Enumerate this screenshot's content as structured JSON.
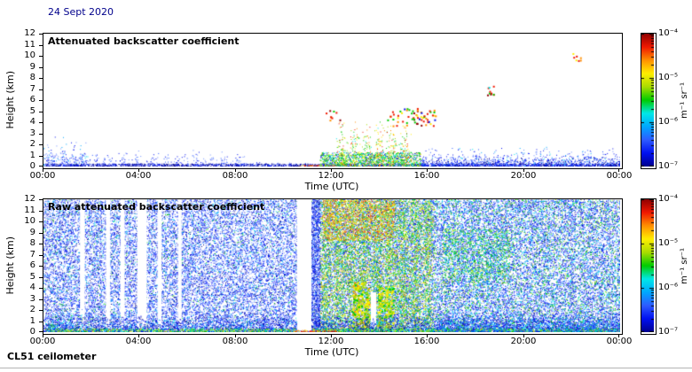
{
  "figure": {
    "date_label": "24 Sept 2020",
    "date_color": "#00008B",
    "footer_label": "CL51 ceilometer",
    "background": "#ffffff",
    "text_color": "#000000"
  },
  "axes": {
    "x_label": "Time (UTC)",
    "y_label": "Height (km)",
    "x_ticks": [
      "00:00",
      "04:00",
      "08:00",
      "12:00",
      "16:00",
      "20:00",
      "00:00"
    ],
    "y_ticks": [
      "12",
      "11",
      "10",
      "9",
      "8",
      "7",
      "6",
      "5",
      "4",
      "3",
      "2",
      "1",
      "0"
    ],
    "x_range_hours": [
      0,
      24
    ],
    "y_range_km": [
      0,
      12
    ]
  },
  "colorbar": {
    "label": "m⁻¹ sr⁻¹",
    "tick_labels": [
      "10⁻⁴",
      "10⁻⁵",
      "10⁻⁶",
      "10⁻⁷"
    ],
    "scale": "log10",
    "value_range": [
      "1e-7",
      "1e-4"
    ],
    "gradient_top_to_bottom": [
      "#8f0000",
      "#f01800",
      "#ff9000",
      "#ffee00",
      "#aadd00",
      "#00cc00",
      "#00e8e8",
      "#00a8ff",
      "#2e5bff",
      "#0010f0",
      "#00008f"
    ]
  },
  "palette": {
    "darkblue": "#00008f",
    "blue": "#0010f0",
    "medblue": "#2e5bff",
    "ltblue": "#6f8fff",
    "skyblue": "#00a8ff",
    "cyan": "#00e8e8",
    "green": "#00cc00",
    "ygreen": "#aadd00",
    "yellow": "#ffee00",
    "orange": "#ff9000",
    "red": "#f01800",
    "darkred": "#8f0000"
  },
  "chart_data": [
    {
      "type": "heatmap",
      "title": "Attenuated backscatter coefficient",
      "xlabel": "Time (UTC)",
      "ylabel": "Height (km)",
      "x_range": [
        0,
        24
      ],
      "y_range": [
        0,
        12
      ],
      "value_label": "m⁻¹ sr⁻¹",
      "value_scale": "log10",
      "value_range": [
        "1e-7",
        "1e-4"
      ],
      "colormap": "jet",
      "description": "Mostly clear (white). Blue aerosol boundary layer below ~2 km all day; speckle up to ~3 km at 00:00–02:00; sparse striped band until 08:00; precipitation/cloud plumes (green-yellow-red) 12:00–15:30 up to ~4.5 km; cloud-base dots near 4–5 km at 14:00–16:00; isolated clouds near 7 km at ~18:30 and ~10 km at ~22:00.",
      "regions": [
        {
          "x": [
            0,
            1.9
          ],
          "y": [
            0,
            3.1
          ],
          "density": 0.22,
          "dot": 1,
          "falloff": 2.0,
          "colors": [
            [
              "ltblue",
              4
            ],
            [
              "blue",
              3
            ],
            [
              "skyblue",
              2
            ],
            [
              "cyan",
              0.5
            ]
          ]
        },
        {
          "x": [
            0,
            8.4
          ],
          "y": [
            0,
            1.7
          ],
          "density": 0.3,
          "dot": 1,
          "falloff": 1.8,
          "columns": 14,
          "colfloor": 0.2,
          "colors": [
            [
              "ltblue",
              4
            ],
            [
              "blue",
              3
            ],
            [
              "medblue",
              2
            ]
          ]
        },
        {
          "x": [
            8.4,
            11.6
          ],
          "y": [
            0,
            0.5
          ],
          "density": 0.15,
          "dot": 1,
          "falloff": 1.5,
          "colors": [
            [
              "ltblue",
              3
            ],
            [
              "blue",
              2
            ]
          ]
        },
        {
          "x": [
            0,
            24
          ],
          "y": [
            0,
            0.28
          ],
          "density": 0.85,
          "dot": 1,
          "colors": [
            [
              "darkblue",
              5
            ],
            [
              "blue",
              3
            ],
            [
              "medblue",
              1
            ]
          ]
        },
        {
          "x": [
            10.6,
            12.15
          ],
          "y": [
            0,
            0.18
          ],
          "density": 0.8,
          "dot": 1,
          "colors": [
            [
              "red",
              3
            ],
            [
              "orange",
              2
            ],
            [
              "yellow",
              1
            ]
          ]
        },
        {
          "x": [
            11.5,
            15.7
          ],
          "y": [
            0,
            1.3
          ],
          "density": 0.75,
          "dot": 1,
          "colors": [
            [
              "green",
              3
            ],
            [
              "cyan",
              2
            ],
            [
              "yellow",
              2
            ],
            [
              "blue",
              2
            ],
            [
              "ygreen",
              1
            ]
          ]
        },
        {
          "x": [
            12.1,
            15.3
          ],
          "y": [
            0,
            4.3
          ],
          "density": 0.4,
          "dot": 1,
          "falloff": 1.1,
          "columns": 6,
          "colfloor": 0.1,
          "colors": [
            [
              "green",
              3
            ],
            [
              "yellow",
              3
            ],
            [
              "orange",
              2
            ],
            [
              "red",
              1.5
            ],
            [
              "cyan",
              1
            ],
            [
              "ygreen",
              2
            ]
          ]
        },
        {
          "x": [
            11.7,
            12.4
          ],
          "y": [
            4.2,
            5.2
          ],
          "density": 0.15,
          "dot": 2,
          "colors": [
            [
              "red",
              2
            ],
            [
              "darkred",
              1
            ],
            [
              "orange",
              1
            ],
            [
              "green",
              1
            ]
          ]
        },
        {
          "x": [
            14.2,
            16.3
          ],
          "y": [
            3.7,
            5.3
          ],
          "density": 0.22,
          "dot": 2,
          "colors": [
            [
              "red",
              3
            ],
            [
              "orange",
              2
            ],
            [
              "yellow",
              2
            ],
            [
              "green",
              2
            ],
            [
              "blue",
              1
            ],
            [
              "darkred",
              1
            ]
          ]
        },
        {
          "x": [
            18.4,
            18.75
          ],
          "y": [
            6.2,
            7.3
          ],
          "density": 0.3,
          "dot": 2,
          "colors": [
            [
              "green",
              2
            ],
            [
              "cyan",
              1
            ],
            [
              "red",
              1
            ],
            [
              "darkred",
              0.5
            ]
          ]
        },
        {
          "x": [
            22.0,
            22.35
          ],
          "y": [
            9.6,
            10.3
          ],
          "density": 0.35,
          "dot": 2,
          "colors": [
            [
              "orange",
              2
            ],
            [
              "red",
              2
            ],
            [
              "yellow",
              1
            ]
          ]
        },
        {
          "x": [
            15.7,
            24
          ],
          "y": [
            0,
            2.1
          ],
          "density": 0.3,
          "dot": 1,
          "falloff": 1.5,
          "lumpy": 9,
          "colors": [
            [
              "ltblue",
              3
            ],
            [
              "blue",
              3
            ],
            [
              "medblue",
              2
            ],
            [
              "skyblue",
              1
            ],
            [
              "cyan",
              0.5
            ]
          ]
        },
        {
          "x": [
            15.7,
            24
          ],
          "y": [
            0,
            0.9
          ],
          "density": 0.5,
          "dot": 1,
          "falloff": 1.0,
          "colors": [
            [
              "blue",
              3
            ],
            [
              "darkblue",
              2
            ],
            [
              "medblue",
              2
            ]
          ]
        }
      ]
    },
    {
      "type": "heatmap",
      "title": "Raw attenuated backscatter coefficient",
      "xlabel": "Time (UTC)",
      "ylabel": "Height (km)",
      "x_range": [
        0,
        24
      ],
      "y_range": [
        0,
        12
      ],
      "value_label": "m⁻¹ sr⁻¹",
      "value_scale": "log10",
      "value_range": [
        "1e-7",
        "1e-4"
      ],
      "colormap": "jet",
      "description": "Dense blue background noise at all heights; white data-gap columns near 01:30–05:00 and 10:30–11:10; strong green/yellow/orange noise enhancement 11:30–16:15 (orange near 8–12 km); bright yellow-green precipitation columns below ~4.5 km at 13:00–14:30; green patch 4.5–9 km around 17:00–19:00; dense blue boundary layer below ~1.6 km with bright cyan/green surface line.",
      "regions": [
        {
          "x": [
            0,
            24
          ],
          "y": [
            0,
            12
          ],
          "density": 0.42,
          "dot": 1,
          "colors": [
            [
              "blue",
              5
            ],
            [
              "medblue",
              4
            ],
            [
              "ltblue",
              3
            ],
            [
              "skyblue",
              1.5
            ],
            [
              "cyan",
              0.8
            ],
            [
              "green",
              0.5
            ],
            [
              "darkblue",
              2
            ]
          ]
        },
        {
          "erase": true,
          "x": [
            1.52,
            1.72
          ],
          "y": [
            0.35,
            12
          ]
        },
        {
          "erase": true,
          "x": [
            2.6,
            2.78
          ],
          "y": [
            0.35,
            12
          ]
        },
        {
          "erase": true,
          "x": [
            3.2,
            3.38
          ],
          "y": [
            0.35,
            12
          ]
        },
        {
          "erase": true,
          "x": [
            3.9,
            4.3
          ],
          "y": [
            0.35,
            12
          ]
        },
        {
          "erase": true,
          "x": [
            4.75,
            4.92
          ],
          "y": [
            0.35,
            12
          ]
        },
        {
          "erase": true,
          "x": [
            5.6,
            5.75
          ],
          "y": [
            0.35,
            12
          ]
        },
        {
          "erase": true,
          "x": [
            10.55,
            11.15
          ],
          "y": [
            0.15,
            12
          ]
        },
        {
          "x": [
            11.15,
            11.5
          ],
          "y": [
            0,
            12
          ],
          "density": 0.6,
          "dot": 1,
          "colors": [
            [
              "blue",
              4
            ],
            [
              "medblue",
              3
            ],
            [
              "darkblue",
              2
            ],
            [
              "ltblue",
              2
            ]
          ]
        },
        {
          "x": [
            11.5,
            16.25
          ],
          "y": [
            0,
            12
          ],
          "density": 0.55,
          "dot": 1,
          "columns": 9,
          "colfloor": 0.55,
          "colors": [
            [
              "green",
              4
            ],
            [
              "ygreen",
              3
            ],
            [
              "yellow",
              2.5
            ],
            [
              "cyan",
              1.5
            ],
            [
              "orange",
              1
            ],
            [
              "skyblue",
              1
            ]
          ]
        },
        {
          "x": [
            11.6,
            14.6
          ],
          "y": [
            8.3,
            12
          ],
          "density": 0.35,
          "dot": 1,
          "colors": [
            [
              "orange",
              3
            ],
            [
              "yellow",
              3
            ],
            [
              "red",
              1.5
            ],
            [
              "ygreen",
              1
            ]
          ]
        },
        {
          "x": [
            12.85,
            13.55
          ],
          "y": [
            0,
            4.6
          ],
          "density": 0.85,
          "dot": 2,
          "colors": [
            [
              "yellow",
              3
            ],
            [
              "ygreen",
              3
            ],
            [
              "green",
              2
            ],
            [
              "orange",
              1
            ]
          ]
        },
        {
          "erase": true,
          "x": [
            13.62,
            13.85
          ],
          "y": [
            0.5,
            3.6
          ]
        },
        {
          "x": [
            13.9,
            14.55
          ],
          "y": [
            0,
            4.2
          ],
          "density": 0.85,
          "dot": 2,
          "colors": [
            [
              "ygreen",
              3
            ],
            [
              "yellow",
              2.5
            ],
            [
              "green",
              2
            ],
            [
              "cyan",
              0.8
            ]
          ]
        },
        {
          "x": [
            16.6,
            19.4
          ],
          "y": [
            4.5,
            9.3
          ],
          "density": 0.22,
          "dot": 1,
          "colors": [
            [
              "green",
              3
            ],
            [
              "ygreen",
              2
            ],
            [
              "cyan",
              1.5
            ],
            [
              "skyblue",
              1
            ]
          ]
        },
        {
          "x": [
            16.25,
            24
          ],
          "y": [
            0,
            12
          ],
          "density": 0.1,
          "dot": 1,
          "colors": [
            [
              "green",
              2
            ],
            [
              "cyan",
              1.5
            ],
            [
              "ygreen",
              1
            ],
            [
              "skyblue",
              1
            ]
          ]
        },
        {
          "x": [
            0,
            10.55
          ],
          "y": [
            0,
            1.6
          ],
          "density": 0.6,
          "dot": 1,
          "falloff": 0.8,
          "colors": [
            [
              "darkblue",
              3
            ],
            [
              "blue",
              4
            ],
            [
              "medblue",
              2
            ],
            [
              "cyan",
              1
            ],
            [
              "skyblue",
              1
            ]
          ]
        },
        {
          "x": [
            11.15,
            24
          ],
          "y": [
            0,
            1.6
          ],
          "density": 0.6,
          "dot": 1,
          "falloff": 0.8,
          "colors": [
            [
              "darkblue",
              3
            ],
            [
              "blue",
              4
            ],
            [
              "medblue",
              2
            ],
            [
              "cyan",
              1
            ],
            [
              "skyblue",
              1
            ]
          ]
        },
        {
          "x": [
            0.2,
            1.6
          ],
          "y": [
            0,
            2.6
          ],
          "density": 0.4,
          "dot": 1,
          "falloff": 1.4,
          "colors": [
            [
              "cyan",
              2
            ],
            [
              "skyblue",
              2
            ],
            [
              "green",
              1.5
            ],
            [
              "blue",
              2
            ],
            [
              "ltblue",
              2
            ]
          ]
        },
        {
          "x": [
            0,
            10.5
          ],
          "y": [
            0,
            0.35
          ],
          "density": 0.9,
          "dot": 1,
          "colors": [
            [
              "cyan",
              2
            ],
            [
              "green",
              2
            ],
            [
              "yellow",
              1.5
            ],
            [
              "ygreen",
              1
            ],
            [
              "blue",
              1
            ]
          ]
        },
        {
          "x": [
            11.2,
            24
          ],
          "y": [
            0,
            0.35
          ],
          "density": 0.9,
          "dot": 1,
          "colors": [
            [
              "cyan",
              2
            ],
            [
              "green",
              2
            ],
            [
              "yellow",
              1.5
            ],
            [
              "ygreen",
              1
            ],
            [
              "blue",
              1
            ]
          ]
        },
        {
          "x": [
            10.4,
            12.2
          ],
          "y": [
            0,
            0.2
          ],
          "density": 0.8,
          "dot": 1,
          "colors": [
            [
              "red",
              2
            ],
            [
              "orange",
              1.5
            ],
            [
              "yellow",
              1
            ]
          ]
        },
        {
          "x": [
            16.25,
            24
          ],
          "y": [
            0,
            2.2
          ],
          "density": 0.45,
          "dot": 1,
          "falloff": 1.2,
          "lumpy": 8,
          "colors": [
            [
              "blue",
              3
            ],
            [
              "medblue",
              2
            ],
            [
              "skyblue",
              2
            ],
            [
              "cyan",
              1
            ],
            [
              "green",
              0.8
            ]
          ]
        }
      ]
    }
  ]
}
